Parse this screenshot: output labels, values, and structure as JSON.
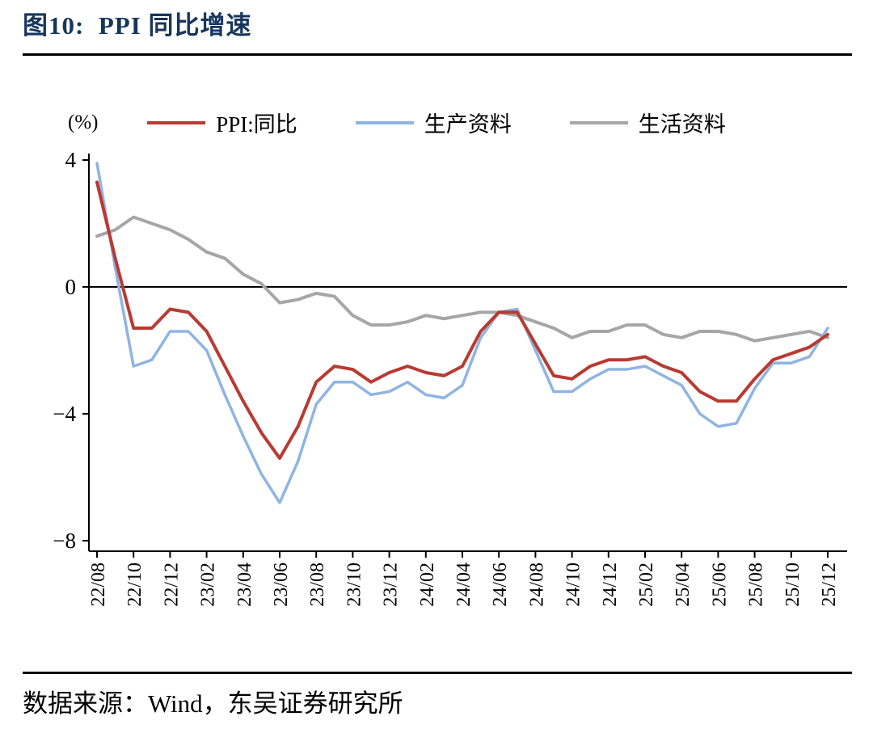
{
  "figure": {
    "source": "数据来源：Wind，东吴证券研究所"
  },
  "chart_data": {
    "type": "line",
    "title": "图10:  PPI 同比增速",
    "unit_label": "(%)",
    "xlabel": "",
    "ylabel": "(%)",
    "ylim": [
      -8,
      4
    ],
    "yticks": [
      4,
      0,
      -4,
      -8
    ],
    "xtick_every": 2,
    "grid": false,
    "zero_line": true,
    "legend_position": "top",
    "x": [
      "22/08",
      "22/09",
      "22/10",
      "22/11",
      "22/12",
      "23/01",
      "23/02",
      "23/03",
      "23/04",
      "23/05",
      "23/06",
      "23/07",
      "23/08",
      "23/09",
      "23/10",
      "23/11",
      "23/12",
      "24/01",
      "24/02",
      "24/03",
      "24/04",
      "24/05",
      "24/06",
      "24/07",
      "24/08",
      "24/09",
      "24/10",
      "24/11",
      "24/12",
      "25/01",
      "25/02",
      "25/03",
      "25/04",
      "25/05",
      "25/06",
      "25/07",
      "25/08",
      "25/09",
      "25/10",
      "25/11",
      "25/12"
    ],
    "series": [
      {
        "name": "PPI:同比",
        "color": "#b93a32",
        "width": 4,
        "values": [
          3.3,
          0.9,
          -1.3,
          -1.3,
          -0.7,
          -0.8,
          -1.4,
          -2.5,
          -3.6,
          -4.6,
          -5.4,
          -4.4,
          -3.0,
          -2.5,
          -2.6,
          -3.0,
          -2.7,
          -2.5,
          -2.7,
          -2.8,
          -2.5,
          -1.4,
          -0.8,
          -0.8,
          -1.8,
          -2.8,
          -2.9,
          -2.5,
          -2.3,
          -2.3,
          -2.2,
          -2.5,
          -2.7,
          -3.3,
          -3.6,
          -3.6,
          -2.9,
          -2.3,
          -2.1,
          -1.9,
          -1.5
        ]
      },
      {
        "name": "生产资料",
        "color": "#8fb4e3",
        "width": 3.5,
        "values": [
          3.9,
          0.6,
          -2.5,
          -2.3,
          -1.4,
          -1.4,
          -2.0,
          -3.4,
          -4.7,
          -5.9,
          -6.8,
          -5.5,
          -3.7,
          -3.0,
          -3.0,
          -3.4,
          -3.3,
          -3.0,
          -3.4,
          -3.5,
          -3.1,
          -1.6,
          -0.8,
          -0.7,
          -2.0,
          -3.3,
          -3.3,
          -2.9,
          -2.6,
          -2.6,
          -2.5,
          -2.8,
          -3.1,
          -4.0,
          -4.4,
          -4.3,
          -3.2,
          -2.4,
          -2.4,
          -2.2,
          -1.3
        ]
      },
      {
        "name": "生活资料",
        "color": "#a6a6a6",
        "width": 4,
        "values": [
          1.6,
          1.8,
          2.2,
          2.0,
          1.8,
          1.5,
          1.1,
          0.9,
          0.4,
          0.1,
          -0.5,
          -0.4,
          -0.2,
          -0.3,
          -0.9,
          -1.2,
          -1.2,
          -1.1,
          -0.9,
          -1.0,
          -0.9,
          -0.8,
          -0.8,
          -0.9,
          -1.1,
          -1.3,
          -1.6,
          -1.4,
          -1.4,
          -1.2,
          -1.2,
          -1.5,
          -1.6,
          -1.4,
          -1.4,
          -1.5,
          -1.7,
          -1.6,
          -1.5,
          -1.4,
          -1.6
        ]
      }
    ]
  }
}
